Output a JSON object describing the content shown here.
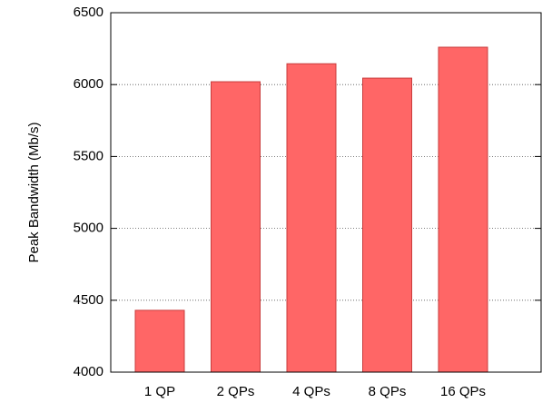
{
  "chart_data": {
    "type": "bar",
    "y_label": "Peak Bandwidth (Mb/s)",
    "categories": [
      "1 QP",
      "2 QPs",
      "4 QPs",
      "8 QPs",
      "16 QPs"
    ],
    "values": [
      4430,
      6020,
      6145,
      6045,
      6260
    ],
    "color": "#ff6666",
    "ylim": [
      4000,
      6500
    ],
    "yticks": [
      4000,
      4500,
      5000,
      5500,
      6000,
      6500
    ],
    "grid": true
  }
}
